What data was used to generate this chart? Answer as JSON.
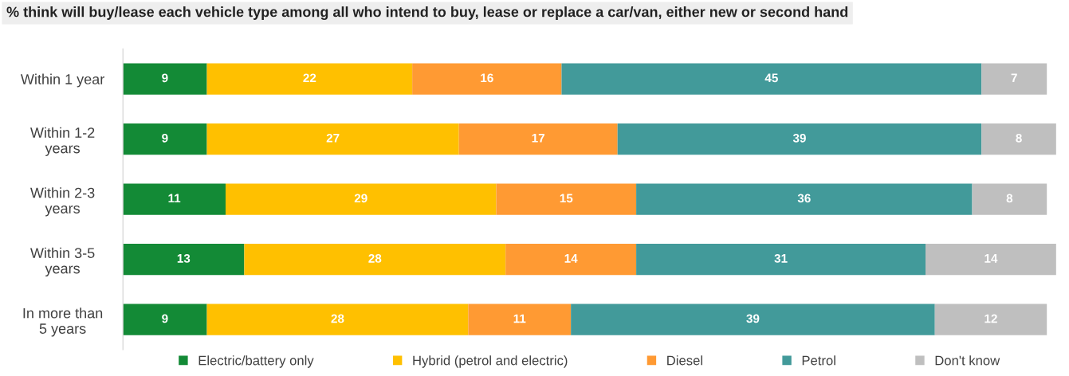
{
  "chart_data": {
    "type": "bar",
    "orientation": "horizontal",
    "stacked": true,
    "data_labels": true,
    "legend": "bottom",
    "grid": false,
    "tick_labels": "y",
    "title": "% think will buy/lease each vehicle type among all who intend to buy, lease or replace a car/van, either new or second hand",
    "categories": [
      "Within 1 year",
      "Within 1-2\nyears",
      "Within 2-3\nyears",
      "Within 3-5\nyears",
      "In more than\n5 years"
    ],
    "series": [
      {
        "name": "Electric/battery only",
        "color": "#138a36",
        "values": [
          9,
          9,
          11,
          13,
          9
        ]
      },
      {
        "name": "Hybrid (petrol and electric)",
        "color": "#ffc000",
        "values": [
          22,
          27,
          29,
          28,
          28
        ]
      },
      {
        "name": "Diesel",
        "color": "#ff9a33",
        "values": [
          16,
          17,
          15,
          14,
          11
        ]
      },
      {
        "name": "Petrol",
        "color": "#429a9a",
        "values": [
          45,
          39,
          36,
          31,
          39
        ]
      },
      {
        "name": "Don't know",
        "color": "#bfbfbf",
        "values": [
          7,
          8,
          8,
          14,
          12
        ]
      }
    ]
  }
}
